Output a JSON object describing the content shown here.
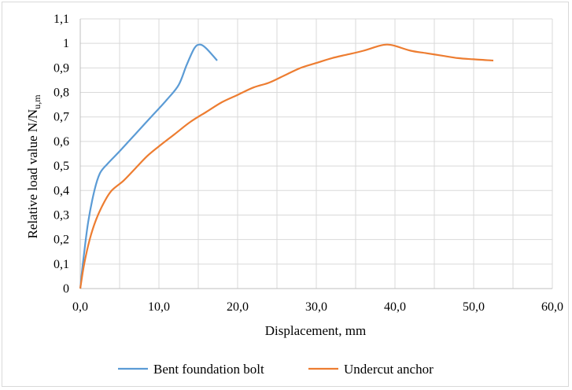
{
  "chart_data": {
    "type": "line",
    "title": "",
    "xlabel": "Displacement, mm",
    "ylabel": "Relative load value N/N",
    "ylabel_subscript": "u,m",
    "xlim": [
      0,
      60
    ],
    "ylim": [
      0,
      1.1
    ],
    "x_ticks": [
      "0,0",
      "10,0",
      "20,0",
      "30,0",
      "40,0",
      "50,0",
      "60,0"
    ],
    "y_ticks": [
      "0",
      "0,1",
      "0,2",
      "0,3",
      "0,4",
      "0,5",
      "0,6",
      "0,7",
      "0,8",
      "0,9",
      "1",
      "1,1"
    ],
    "grid": true,
    "legend_position": "bottom",
    "series": [
      {
        "name": "Bent foundation bolt",
        "color": "#5b9bd5",
        "points": [
          [
            0,
            0
          ],
          [
            0.4,
            0.12
          ],
          [
            1.0,
            0.27
          ],
          [
            1.8,
            0.4
          ],
          [
            2.5,
            0.47
          ],
          [
            3.5,
            0.51
          ],
          [
            5,
            0.56
          ],
          [
            7,
            0.63
          ],
          [
            9,
            0.7
          ],
          [
            11,
            0.77
          ],
          [
            12.5,
            0.83
          ],
          [
            13.5,
            0.91
          ],
          [
            14.5,
            0.98
          ],
          [
            15.2,
            0.995
          ],
          [
            16,
            0.98
          ],
          [
            17.4,
            0.93
          ]
        ]
      },
      {
        "name": "Undercut anchor",
        "color": "#ed7d31",
        "points": [
          [
            0,
            0
          ],
          [
            0.5,
            0.1
          ],
          [
            1.2,
            0.2
          ],
          [
            2,
            0.28
          ],
          [
            3,
            0.35
          ],
          [
            4,
            0.4
          ],
          [
            5.5,
            0.44
          ],
          [
            7,
            0.49
          ],
          [
            8.5,
            0.54
          ],
          [
            10,
            0.58
          ],
          [
            12,
            0.63
          ],
          [
            14,
            0.68
          ],
          [
            16,
            0.72
          ],
          [
            18,
            0.76
          ],
          [
            20,
            0.79
          ],
          [
            22,
            0.82
          ],
          [
            24,
            0.84
          ],
          [
            26,
            0.87
          ],
          [
            28,
            0.9
          ],
          [
            30,
            0.92
          ],
          [
            32,
            0.94
          ],
          [
            34,
            0.955
          ],
          [
            36,
            0.97
          ],
          [
            38,
            0.99
          ],
          [
            39,
            0.995
          ],
          [
            40,
            0.99
          ],
          [
            42,
            0.97
          ],
          [
            44,
            0.96
          ],
          [
            46,
            0.95
          ],
          [
            48,
            0.94
          ],
          [
            50,
            0.935
          ],
          [
            52.5,
            0.93
          ]
        ]
      }
    ]
  }
}
